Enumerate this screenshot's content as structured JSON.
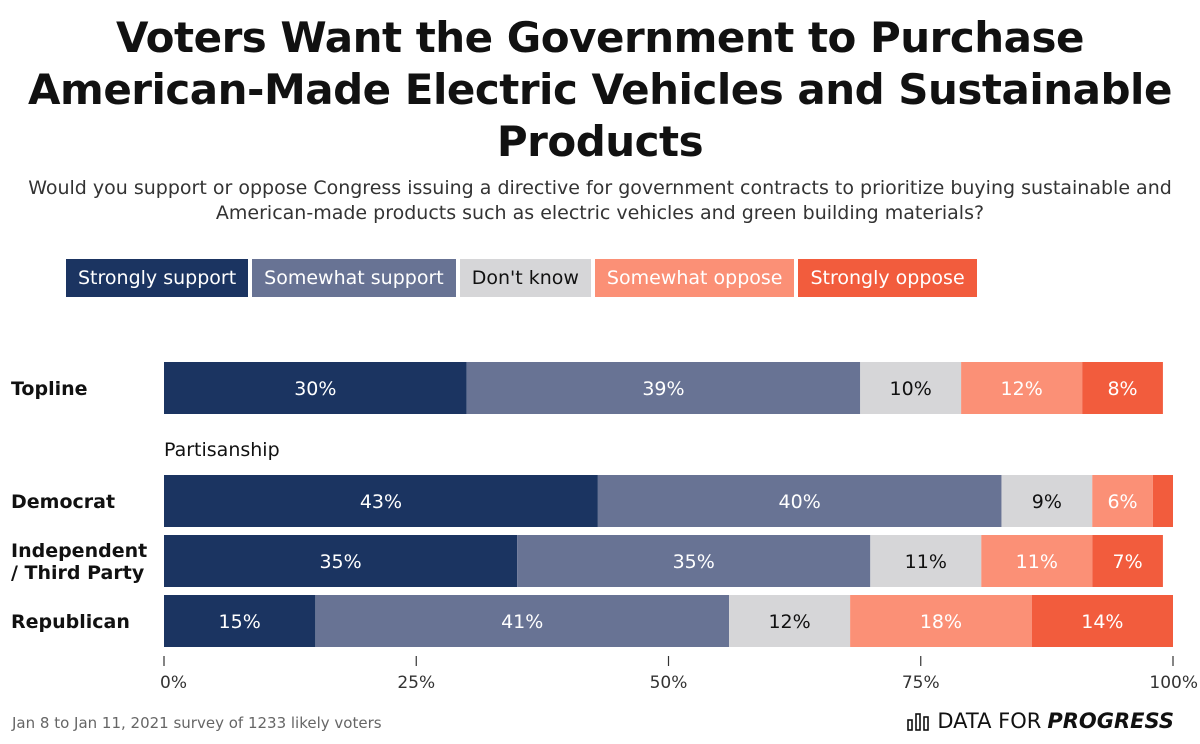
{
  "title": "Voters Want the Government to Purchase American-Made Electric Vehicles and Sustainable Products",
  "subtitle": "Would you support or oppose Congress issuing a directive for government contracts to prioritize buying sustainable and American-made products such as electric vehicles and green building materials?",
  "footer": "Jan 8 to Jan 11, 2021 survey of 1233 likely voters",
  "brand": {
    "icon": "bar-chart-icon",
    "text_regular": "DATA FOR",
    "text_bold": "PROGRESS"
  },
  "chart_data": {
    "type": "bar",
    "orientation": "horizontal",
    "stacked": true,
    "categories": [
      "Topline",
      "Democrat",
      "Independent / Third Party",
      "Republican"
    ],
    "group_label": "Partisanship",
    "series": [
      {
        "name": "Strongly support",
        "color": "#1b3461",
        "values": [
          30,
          43,
          35,
          15
        ]
      },
      {
        "name": "Somewhat support",
        "color": "#687394",
        "values": [
          39,
          40,
          35,
          41
        ]
      },
      {
        "name": "Don't know",
        "color": "#d6d6d8",
        "values": [
          10,
          9,
          11,
          12
        ]
      },
      {
        "name": "Somewhat oppose",
        "color": "#fb9076",
        "values": [
          12,
          6,
          11,
          18
        ]
      },
      {
        "name": "Strongly oppose",
        "color": "#f25c3d",
        "values": [
          8,
          2,
          7,
          14
        ]
      }
    ],
    "data_labels": [
      [
        "30%",
        "39%",
        "10%",
        "12%",
        "8%"
      ],
      [
        "43%",
        "40%",
        "9%",
        "6%",
        ""
      ],
      [
        "35%",
        "35%",
        "11%",
        "11%",
        "7%"
      ],
      [
        "15%",
        "41%",
        "12%",
        "18%",
        "14%"
      ]
    ],
    "xlim": [
      0,
      100
    ],
    "xticks": [
      0,
      25,
      50,
      75,
      100
    ],
    "xtick_labels": [
      "0%",
      "25%",
      "50%",
      "75%",
      "100%"
    ],
    "legend_position": "top"
  }
}
